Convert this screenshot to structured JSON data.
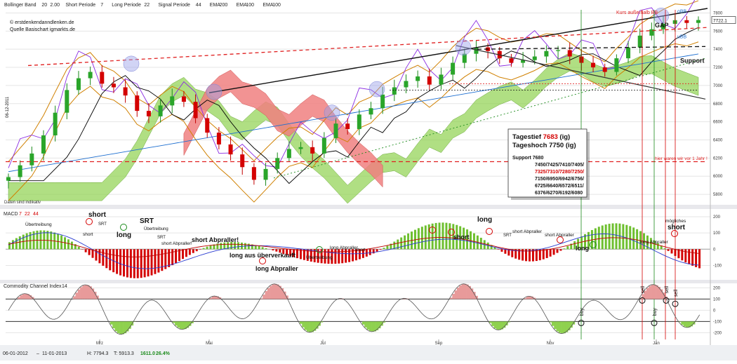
{
  "header": {
    "items": [
      {
        "label": "Bollinger Band",
        "v1": "20",
        "v2": "2.00",
        "color": "#d08000"
      },
      {
        "label": "Short Periode",
        "v1": "7",
        "v2": "",
        "color": "#222"
      },
      {
        "label": "Long Periode",
        "v1": "22",
        "v2": "",
        "color": "#222"
      },
      {
        "label": "Signal Periode",
        "v1": "44",
        "v2": "",
        "color": "#222"
      },
      {
        "label": "EMA",
        "v1": "200",
        "v2": "",
        "color": "#8a2be2"
      },
      {
        "label": "EMA",
        "v1": "100",
        "v2": "",
        "color": "#1e6fd0"
      },
      {
        "label": "EMA",
        "v1": "100",
        "v2": "",
        "color": "#e07000"
      }
    ],
    "copyright": "© erstdenkendanndlenken.de",
    "source": "Quelle Basischart igmarkts.de",
    "side_date": "06-12-2011",
    "note": "Daten sind indikativ"
  },
  "chart_data": [
    {
      "type": "line",
      "panel": "price",
      "title": "",
      "y_ticks": [
        5800,
        6000,
        6200,
        6400,
        6600,
        6800,
        7000,
        7200,
        7400,
        7600,
        7800
      ],
      "ylim": [
        5700,
        7850
      ],
      "last_price": "7722.1",
      "x_labels": [
        "Mrz",
        "Mai",
        "Jul",
        "Sep",
        "Nov",
        "Jan"
      ],
      "series": [
        {
          "name": "",
          "values": [
            5990,
            6120,
            6250,
            6450,
            6700,
            6950,
            7080,
            7150,
            7020,
            6980,
            6890,
            6720,
            6660,
            6780,
            6880,
            6820,
            6640,
            6480,
            6350,
            6240,
            6100,
            5960,
            6080,
            6200,
            6300,
            6320,
            6250,
            6420,
            6580,
            6520,
            6680,
            6750,
            6900,
            6980,
            7050,
            7100,
            7010,
            7120,
            7250,
            7350,
            7420,
            7380,
            7300,
            7250,
            7280,
            7320,
            7380,
            7390,
            7320,
            7250,
            7200,
            7150,
            7300,
            7420,
            7550,
            7620,
            7680,
            7720,
            7690,
            7722
          ]
        }
      ],
      "annotations": [
        "Kurs außerhalb BB",
        "GAP",
        "oBB",
        "uBB",
        "Support",
        "hier waren wir vor 1 Jahr !"
      ],
      "info_box": {
        "line1_label": "Tagestief",
        "line1_value": "7683",
        "line1_suffix": "(ig)",
        "line2": "Tageshoch 7750 (ig)",
        "support_title": "Support 7680",
        "support_rows": [
          {
            "text": "7450/7425/7410/7405/",
            "color": "#111"
          },
          {
            "text": "7325/7310/7280/7250/",
            "color": "#d40000"
          },
          {
            "text": "7150/6950/6942/6756/",
            "color": "#111"
          },
          {
            "text": "6725/6640/6572/6511/",
            "color": "#111"
          },
          {
            "text": "6376/6270/6192/6080",
            "color": "#111"
          }
        ]
      }
    },
    {
      "type": "bar",
      "panel": "macd",
      "title": "MACD",
      "params": [
        "7",
        "22",
        "44"
      ],
      "y_ticks": [
        200,
        100,
        0,
        -100
      ],
      "ylim": [
        -180,
        230
      ],
      "annotations": [
        "short",
        "Übertreibung",
        "SRT",
        "long",
        "short",
        "SRT",
        "Übertreibung",
        "SRT",
        "short Abpraller!",
        "short Abpraller!",
        "long aus überverkauft",
        "long Abpraller",
        "Übertreibung",
        "long Abpraller",
        "short",
        "long",
        "short",
        "SRT",
        "short Abpraller",
        "short Abpraller",
        "long",
        "long Abpraller",
        "mögliches",
        "short"
      ]
    },
    {
      "type": "area",
      "panel": "cci",
      "title": "Commodity Channel Index",
      "params": [
        "14"
      ],
      "y_ticks": [
        200,
        100,
        0,
        -100,
        -200
      ],
      "ylim": [
        -260,
        240
      ],
      "annotations": [
        "buy",
        "sell",
        "buy",
        "sell",
        "sell"
      ]
    }
  ],
  "status": {
    "start": "06-01-2012",
    "end": "11-01-2013",
    "high": "H: 7794.3",
    "low": "T: 5913.3",
    "change": "1611.0",
    "pct": "26.4%"
  }
}
